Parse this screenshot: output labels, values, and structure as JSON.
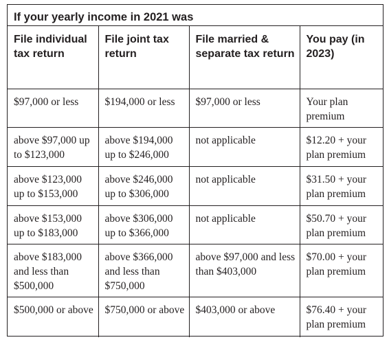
{
  "table": {
    "title": "If your yearly income in 2021 was",
    "headers": [
      "File individual tax return",
      "File joint tax return",
      "File married & separate tax return",
      "You pay (in 2023)"
    ],
    "rows": [
      [
        "$97,000 or less",
        "$194,000 or less",
        "$97,000 or less",
        "Your plan premium"
      ],
      [
        "above $97,000 up to $123,000",
        "above $194,000 up to $246,000",
        "not applicable",
        "$12.20 + your plan premium"
      ],
      [
        "above $123,000 up to $153,000",
        "above $246,000 up to $306,000",
        "not applicable",
        "$31.50 + your plan premium"
      ],
      [
        "above $153,000 up to $183,000",
        "above $306,000 up to $366,000",
        "not applicable",
        "$50.70 + your plan premium"
      ],
      [
        "above $183,000 and less than $500,000",
        "above $366,000 and less than $750,000",
        "above $97,000 and less than $403,000",
        "$70.00 + your plan premium"
      ],
      [
        "$500,000 or above",
        "$750,000 or above",
        "$403,000 or above",
        "$76.40 + your plan premium"
      ]
    ]
  }
}
